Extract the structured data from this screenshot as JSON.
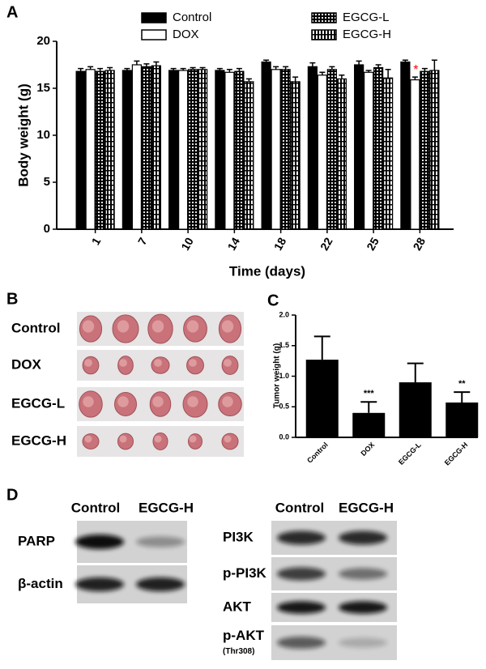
{
  "panel_labels": [
    "A",
    "B",
    "C",
    "D"
  ],
  "chart_data": [
    {
      "type": "bar",
      "x_label": "Time (days)",
      "y_label": "Body weight (g)",
      "categories": [
        "1",
        "7",
        "10",
        "14",
        "18",
        "22",
        "25",
        "28"
      ],
      "series": [
        {
          "name": "Control",
          "color": "#000000",
          "pattern": "solid",
          "values": [
            16.8,
            16.9,
            16.9,
            16.9,
            17.8,
            17.3,
            17.5,
            17.8
          ],
          "errors": [
            0.3,
            0.2,
            0.2,
            0.2,
            0.2,
            0.4,
            0.4,
            0.2
          ]
        },
        {
          "name": "DOX",
          "color": "#000000",
          "pattern": "hollow",
          "values": [
            17.0,
            17.5,
            16.9,
            16.7,
            17.0,
            16.4,
            16.7,
            15.9
          ],
          "errors": [
            0.3,
            0.4,
            0.2,
            0.3,
            0.3,
            0.3,
            0.2,
            0.3
          ]
        },
        {
          "name": "EGCG-L",
          "color": "#000000",
          "pattern": "dots",
          "values": [
            16.8,
            17.3,
            17.0,
            16.8,
            17.0,
            17.0,
            17.2,
            16.8
          ],
          "errors": [
            0.3,
            0.3,
            0.2,
            0.3,
            0.3,
            0.3,
            0.3,
            0.3
          ]
        },
        {
          "name": "EGCG-H",
          "color": "#000000",
          "pattern": "stripes",
          "values": [
            16.9,
            17.4,
            17.0,
            15.7,
            15.7,
            16.0,
            16.1,
            16.9
          ],
          "errors": [
            0.3,
            0.4,
            0.2,
            0.3,
            0.5,
            0.4,
            0.9,
            1.1
          ]
        }
      ],
      "ylim": [
        0,
        20
      ],
      "yticks": [
        0,
        5,
        10,
        15,
        20
      ],
      "annotations": [
        {
          "text": "*",
          "color": "#ff0000"
        }
      ]
    },
    {
      "type": "bar",
      "y_label": "Tumor weight (g)",
      "categories": [
        "Control",
        "DOX",
        "EGCG-L",
        "EGCG-H"
      ],
      "color": "#000000",
      "values": [
        1.27,
        0.4,
        0.9,
        0.57
      ],
      "errors": [
        0.38,
        0.18,
        0.31,
        0.17
      ],
      "ylim": [
        0,
        2
      ],
      "yticks": [
        {
          "value": 0,
          "label": "0.0"
        },
        0.5,
        {
          "value": 1,
          "label": "1.0"
        },
        1.5,
        {
          "value": 2,
          "label": "2.0"
        }
      ],
      "annotations": [
        {
          "text": "***"
        },
        {
          "text": "**"
        }
      ]
    }
  ],
  "tumor_photo": {
    "row_labels": [
      "Control",
      "DOX",
      "EGCG-L",
      "EGCG-H"
    ]
  },
  "western_blot": {
    "left": {
      "columns": [
        "Control",
        "EGCG-H"
      ],
      "rows": [
        "PARP",
        "β-actin"
      ]
    },
    "right": {
      "columns": [
        "Control",
        "EGCG-H"
      ],
      "rows": [
        "PI3K",
        "p-PI3K",
        "AKT",
        "p-AKT"
      ],
      "note": "(Thr308)"
    }
  }
}
